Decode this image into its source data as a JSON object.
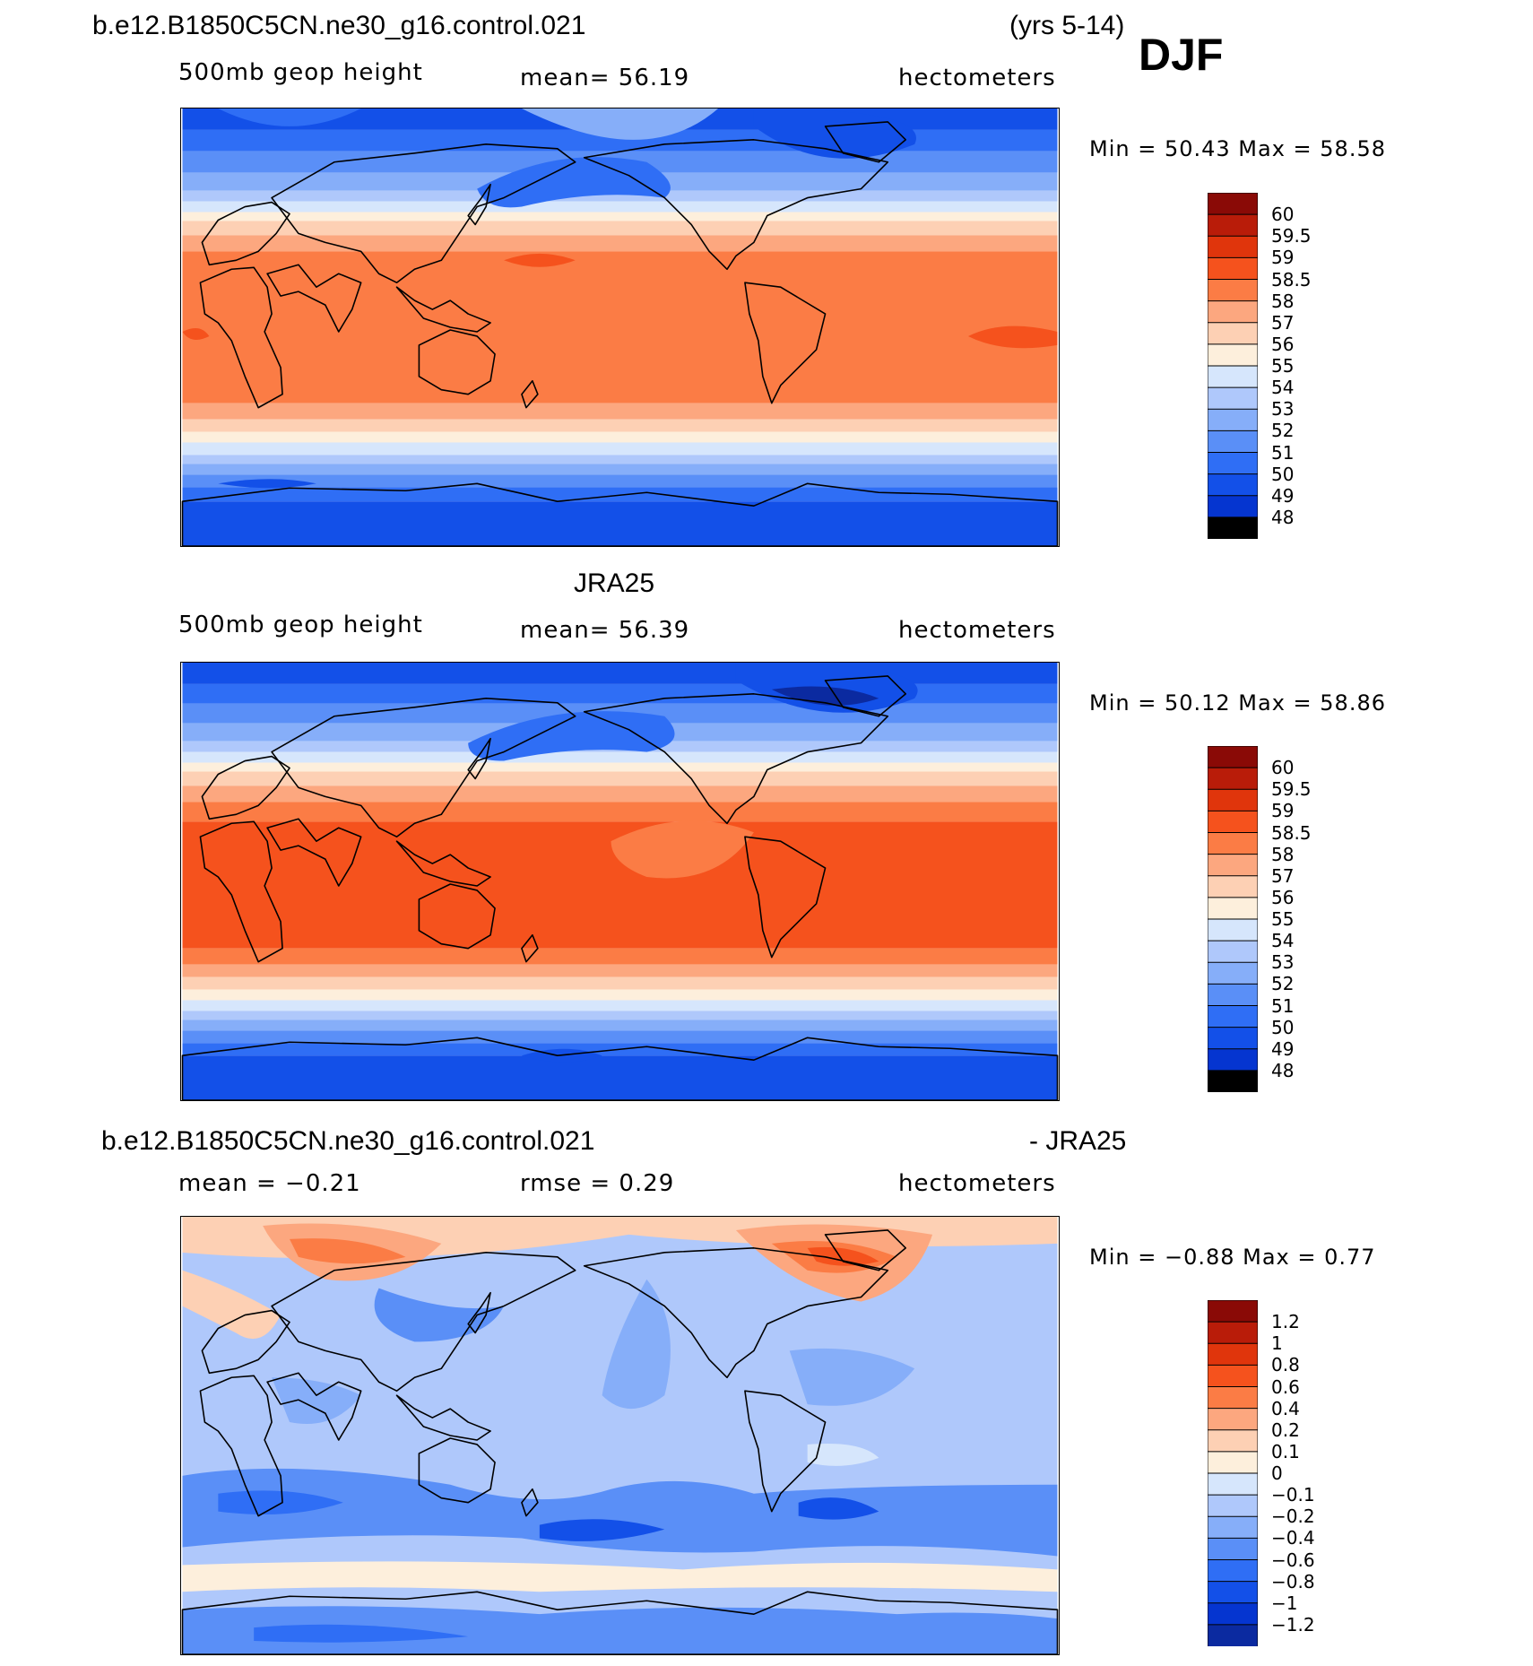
{
  "header": {
    "case_name": "b.e12.B1850C5CN.ne30_g16.control.021",
    "years": "(yrs 5-14)",
    "season": "DJF"
  },
  "colors": {
    "field_scale": [
      "#000080",
      "#0b2aa0",
      "#0535d0",
      "#1350e8",
      "#2f6ef5",
      "#5a8ff7",
      "#86aef9",
      "#afc8fb",
      "#d6e6fc",
      "#fdefdc",
      "#fdd0b4",
      "#fca77f",
      "#fb7c45",
      "#f5521d",
      "#e0350c",
      "#b91c09",
      "#8a0a06"
    ],
    "diff_scale": [
      "#000080",
      "#0b2aa0",
      "#0535d0",
      "#1350e8",
      "#2f6ef5",
      "#5a8ff7",
      "#86aef9",
      "#afc8fb",
      "#d6e6fc",
      "#fdefdc",
      "#fdd0b4",
      "#fca77f",
      "#fb7c45",
      "#f5521d",
      "#e0350c",
      "#b91c09",
      "#8a0a06"
    ]
  },
  "panels": [
    {
      "title": "",
      "variable": "500mb  geop height",
      "stat": "mean=   56.19",
      "units": "hectometers",
      "minmax": "Min  =    50.43  Max  =    58.58",
      "map_type": "field_model",
      "colorbar": [
        "60",
        "59.5",
        "59",
        "58.5",
        "58",
        "57",
        "56",
        "55",
        "54",
        "53",
        "52",
        "51",
        "50",
        "49",
        "48"
      ]
    },
    {
      "title": "JRA25",
      "variable": "500mb  geop height",
      "stat": "mean=   56.39",
      "units": "hectometers",
      "minmax": "Min  =    50.12  Max  =    58.86",
      "map_type": "field_obs",
      "colorbar": [
        "60",
        "59.5",
        "59",
        "58.5",
        "58",
        "57",
        "56",
        "55",
        "54",
        "53",
        "52",
        "51",
        "50",
        "49",
        "48"
      ]
    },
    {
      "title_left": "b.e12.B1850C5CN.ne30_g16.control.021",
      "title_right": "- JRA25",
      "variable": "mean  =   −0.21",
      "stat": "rmse  =     0.29",
      "units": "hectometers",
      "minmax": "Min  =   −0.88  Max  =     0.77",
      "map_type": "difference",
      "colorbar": [
        "1.2",
        "1",
        "0.8",
        "0.6",
        "0.4",
        "0.2",
        "0.1",
        "0",
        "−0.1",
        "−0.2",
        "−0.4",
        "−0.6",
        "−0.8",
        "−1",
        "−1.2"
      ]
    }
  ]
}
